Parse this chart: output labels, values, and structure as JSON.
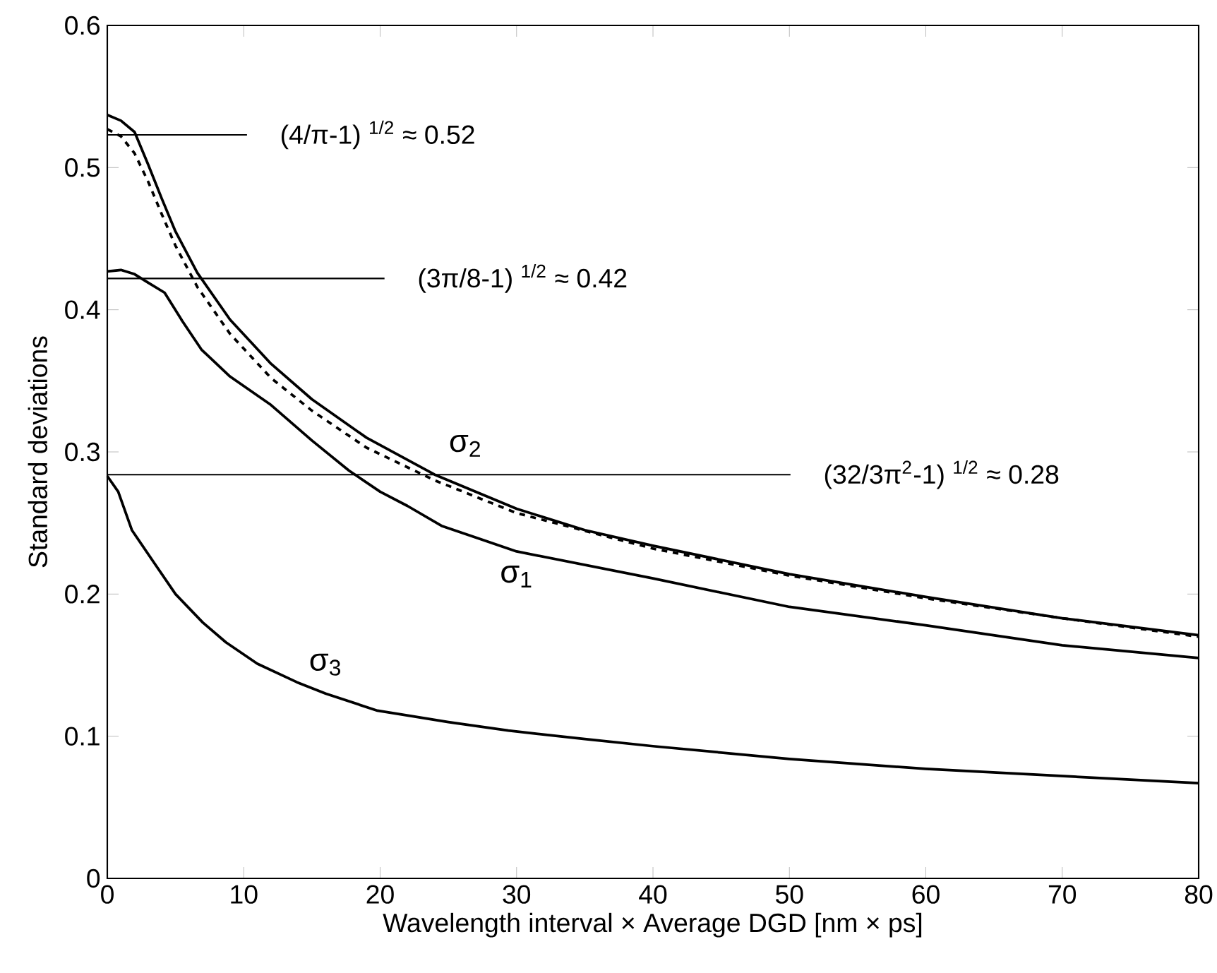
{
  "chart_data": {
    "type": "line",
    "xlabel": "Wavelength interval × Average DGD [nm × ps]",
    "ylabel": "Standard deviations",
    "xlim": [
      0,
      80
    ],
    "ylim": [
      0,
      0.6
    ],
    "xticks": [
      0,
      10,
      20,
      30,
      40,
      50,
      60,
      70,
      80
    ],
    "yticks": [
      0,
      0.1,
      0.2,
      0.3,
      0.4,
      0.5,
      0.6
    ],
    "series": [
      {
        "name": "σ$_{1}$",
        "color": "#000000",
        "line_style": "solid",
        "x": [
          0,
          1,
          2,
          3,
          4.2,
          5.5,
          6.9,
          9,
          12,
          15,
          17.7,
          20,
          22,
          24.5,
          30,
          40,
          50,
          60,
          70,
          80
        ],
        "values": [
          0.427,
          0.428,
          0.425,
          0.419,
          0.412,
          0.392,
          0.372,
          0.353,
          0.333,
          0.308,
          0.287,
          0.272,
          0.262,
          0.248,
          0.23,
          0.211,
          0.191,
          0.178,
          0.164,
          0.155
        ]
      },
      {
        "name": "σ$_{2}$",
        "color": "#000000",
        "line_style": "solid",
        "x": [
          0,
          1,
          2,
          3,
          4,
          5,
          6.6,
          9,
          12,
          15,
          19,
          24,
          30,
          35,
          40,
          50,
          60,
          70,
          80
        ],
        "values": [
          0.537,
          0.533,
          0.525,
          0.502,
          0.478,
          0.455,
          0.426,
          0.393,
          0.362,
          0.337,
          0.31,
          0.284,
          0.26,
          0.245,
          0.234,
          0.214,
          0.198,
          0.183,
          0.171
        ]
      },
      {
        "color": "#000000",
        "line_style": "dashed",
        "x": [
          0,
          1,
          2,
          3,
          4,
          5,
          6.6,
          9,
          12,
          15,
          19,
          24,
          30,
          40,
          50,
          60,
          70,
          80
        ],
        "values": [
          0.527,
          0.522,
          0.51,
          0.49,
          0.467,
          0.445,
          0.416,
          0.383,
          0.352,
          0.329,
          0.303,
          0.28,
          0.257,
          0.232,
          0.213,
          0.197,
          0.183,
          0.17
        ]
      },
      {
        "name": "σ$_{3}$",
        "color": "#000000",
        "line_style": "solid",
        "x": [
          0,
          0.8,
          1.8,
          3.5,
          5,
          7,
          8.7,
          11,
          13.9,
          16,
          19.8,
          25,
          29.4,
          35,
          40,
          50,
          60,
          70,
          80
        ],
        "values": [
          0.283,
          0.272,
          0.245,
          0.221,
          0.2,
          0.18,
          0.166,
          0.151,
          0.138,
          0.13,
          0.118,
          0.11,
          0.104,
          0.098,
          0.093,
          0.084,
          0.077,
          0.072,
          0.067
        ]
      }
    ],
    "ref_lines": [
      {
        "axis": "y",
        "value": 0.523,
        "label": "(4/π-1) $^{1/2}$ ≈ 0.52",
        "color": "#000000"
      },
      {
        "axis": "y",
        "value": 0.422,
        "label": "(3π/8-1) $^{1/2}$ ≈ 0.42",
        "color": "#000000"
      },
      {
        "axis": "y",
        "value": 0.284,
        "label": "(32/3π$^{2}$-1) $^{1/2}$ ≈ 0.28",
        "color": "#000000"
      }
    ]
  }
}
